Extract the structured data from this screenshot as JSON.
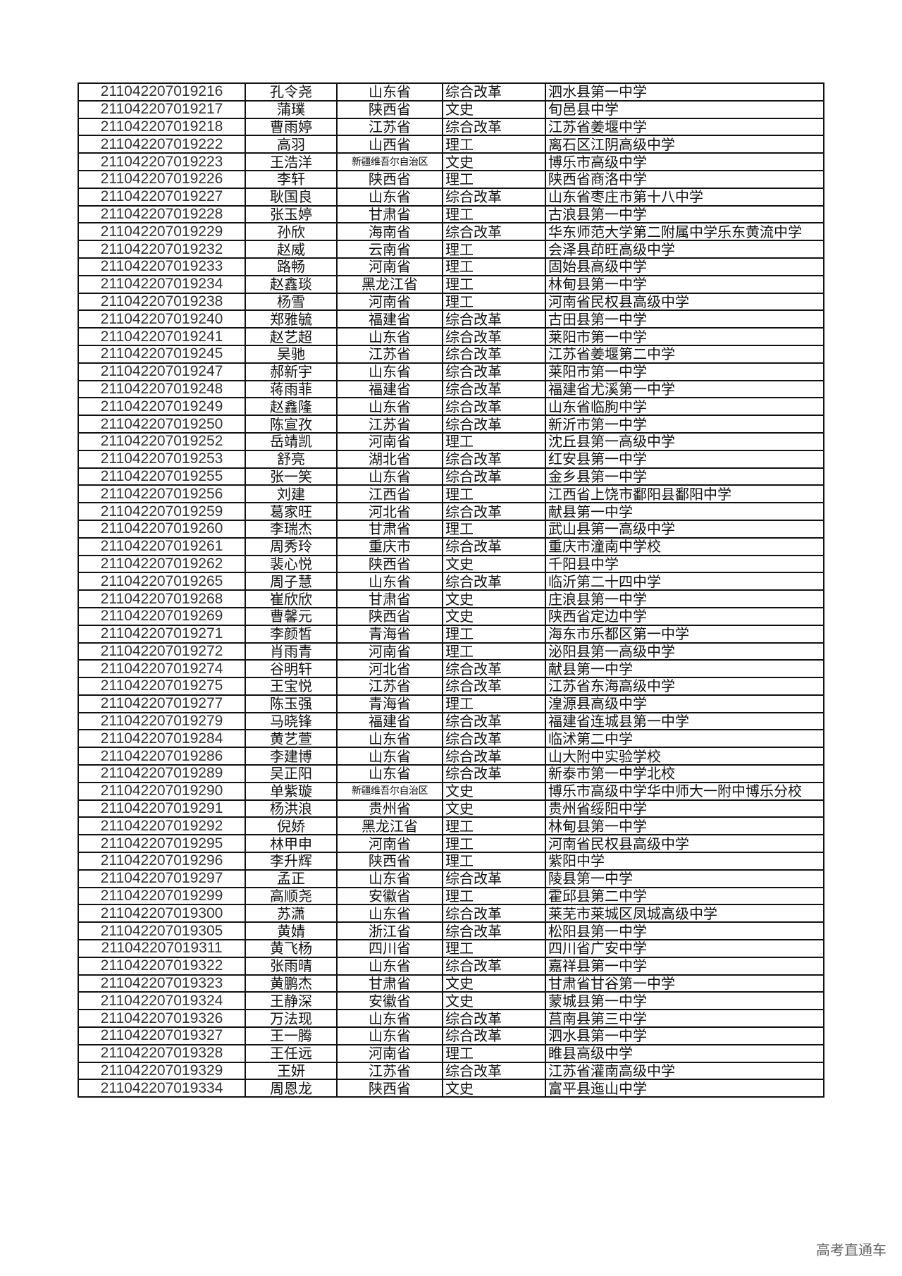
{
  "rows": [
    [
      "211042207019216",
      "孔令尧",
      "山东省",
      "综合改革",
      "泗水县第一中学"
    ],
    [
      "211042207019217",
      "蒲璞",
      "陕西省",
      "文史",
      "旬邑县中学"
    ],
    [
      "211042207019218",
      "曹雨婷",
      "江苏省",
      "综合改革",
      "江苏省姜堰中学"
    ],
    [
      "211042207019222",
      "高羽",
      "山西省",
      "理工",
      "离石区江阴高级中学"
    ],
    [
      "211042207019223",
      "王浩洋",
      "新疆维吾尔自治区",
      "文史",
      "博乐市高级中学"
    ],
    [
      "211042207019226",
      "李轩",
      "陕西省",
      "理工",
      "陕西省商洛中学"
    ],
    [
      "211042207019227",
      "耿国良",
      "山东省",
      "综合改革",
      "山东省枣庄市第十八中学"
    ],
    [
      "211042207019228",
      "张玉婷",
      "甘肃省",
      "理工",
      "古浪县第一中学"
    ],
    [
      "211042207019229",
      "孙欣",
      "海南省",
      "综合改革",
      "华东师范大学第二附属中学乐东黄流中学"
    ],
    [
      "211042207019232",
      "赵威",
      "云南省",
      "理工",
      "会泽县茚旺高级中学"
    ],
    [
      "211042207019233",
      "路畅",
      "河南省",
      "理工",
      "固始县高级中学"
    ],
    [
      "211042207019234",
      "赵鑫琰",
      "黑龙江省",
      "理工",
      "林甸县第一中学"
    ],
    [
      "211042207019238",
      "杨雪",
      "河南省",
      "理工",
      "河南省民权县高级中学"
    ],
    [
      "211042207019240",
      "郑雅毓",
      "福建省",
      "综合改革",
      "古田县第一中学"
    ],
    [
      "211042207019241",
      "赵艺超",
      "山东省",
      "综合改革",
      "莱阳市第一中学"
    ],
    [
      "211042207019245",
      "吴驰",
      "江苏省",
      "综合改革",
      "江苏省姜堰第二中学"
    ],
    [
      "211042207019247",
      "郝新宇",
      "山东省",
      "综合改革",
      "莱阳市第一中学"
    ],
    [
      "211042207019248",
      "蒋雨菲",
      "福建省",
      "综合改革",
      "福建省尤溪第一中学"
    ],
    [
      "211042207019249",
      "赵鑫隆",
      "山东省",
      "综合改革",
      "山东省临朐中学"
    ],
    [
      "211042207019250",
      "陈宣孜",
      "江苏省",
      "综合改革",
      "新沂市第一中学"
    ],
    [
      "211042207019252",
      "岳靖凯",
      "河南省",
      "理工",
      "沈丘县第一高级中学"
    ],
    [
      "211042207019253",
      "舒亮",
      "湖北省",
      "综合改革",
      "红安县第一中学"
    ],
    [
      "211042207019255",
      "张一笑",
      "山东省",
      "综合改革",
      "金乡县第一中学"
    ],
    [
      "211042207019256",
      "刘建",
      "江西省",
      "理工",
      "江西省上饶市鄱阳县鄱阳中学"
    ],
    [
      "211042207019259",
      "葛家旺",
      "河北省",
      "综合改革",
      "献县第一中学"
    ],
    [
      "211042207019260",
      "李瑞杰",
      "甘肃省",
      "理工",
      "武山县第一高级中学"
    ],
    [
      "211042207019261",
      "周秀玲",
      "重庆市",
      "综合改革",
      "重庆市潼南中学校"
    ],
    [
      "211042207019262",
      "裴心悦",
      "陕西省",
      "文史",
      "千阳县中学"
    ],
    [
      "211042207019265",
      "周子慧",
      "山东省",
      "综合改革",
      "临沂第二十四中学"
    ],
    [
      "211042207019268",
      "崔欣欣",
      "甘肃省",
      "文史",
      "庄浪县第一中学"
    ],
    [
      "211042207019269",
      "曹馨元",
      "陕西省",
      "文史",
      "陕西省定边中学"
    ],
    [
      "211042207019271",
      "李颜皙",
      "青海省",
      "理工",
      "海东市乐都区第一中学"
    ],
    [
      "211042207019272",
      "肖雨青",
      "河南省",
      "理工",
      "泌阳县第一高级中学"
    ],
    [
      "211042207019274",
      "谷明轩",
      "河北省",
      "综合改革",
      "献县第一中学"
    ],
    [
      "211042207019275",
      "王宝悦",
      "江苏省",
      "综合改革",
      "江苏省东海高级中学"
    ],
    [
      "211042207019277",
      "陈玉强",
      "青海省",
      "理工",
      "湟源县高级中学"
    ],
    [
      "211042207019279",
      "马晓锋",
      "福建省",
      "综合改革",
      "福建省连城县第一中学"
    ],
    [
      "211042207019284",
      "黄艺萱",
      "山东省",
      "综合改革",
      "临沭第二中学"
    ],
    [
      "211042207019286",
      "李建博",
      "山东省",
      "综合改革",
      "山大附中实验学校"
    ],
    [
      "211042207019289",
      "吴正阳",
      "山东省",
      "综合改革",
      "新泰市第一中学北校"
    ],
    [
      "211042207019290",
      "单紫璇",
      "新疆维吾尔自治区",
      "文史",
      "博乐市高级中学华中师大一附中博乐分校"
    ],
    [
      "211042207019291",
      "杨洪浪",
      "贵州省",
      "文史",
      "贵州省绥阳中学"
    ],
    [
      "211042207019292",
      "倪娇",
      "黑龙江省",
      "理工",
      "林甸县第一中学"
    ],
    [
      "211042207019295",
      "林甲申",
      "河南省",
      "理工",
      "河南省民权县高级中学"
    ],
    [
      "211042207019296",
      "李升辉",
      "陕西省",
      "理工",
      "紫阳中学"
    ],
    [
      "211042207019297",
      "孟正",
      "山东省",
      "综合改革",
      "陵县第一中学"
    ],
    [
      "211042207019299",
      "高顺尧",
      "安徽省",
      "理工",
      "霍邱县第二中学"
    ],
    [
      "211042207019300",
      "苏潇",
      "山东省",
      "综合改革",
      "莱芜市莱城区凤城高级中学"
    ],
    [
      "211042207019305",
      "黄婧",
      "浙江省",
      "综合改革",
      "松阳县第一中学"
    ],
    [
      "211042207019311",
      "黄飞杨",
      "四川省",
      "理工",
      "四川省广安中学"
    ],
    [
      "211042207019322",
      "张雨晴",
      "山东省",
      "综合改革",
      "嘉祥县第一中学"
    ],
    [
      "211042207019323",
      "黄鹏杰",
      "甘肃省",
      "文史",
      "甘肃省甘谷第一中学"
    ],
    [
      "211042207019324",
      "王静深",
      "安徽省",
      "文史",
      "蒙城县第一中学"
    ],
    [
      "211042207019326",
      "万法现",
      "山东省",
      "综合改革",
      "莒南县第三中学"
    ],
    [
      "211042207019327",
      "王一腾",
      "山东省",
      "综合改革",
      "泗水县第一中学"
    ],
    [
      "211042207019328",
      "王任远",
      "河南省",
      "理工",
      "睢县高级中学"
    ],
    [
      "211042207019329",
      "王妍",
      "江苏省",
      "综合改革",
      "江苏省灌南高级中学"
    ],
    [
      "211042207019334",
      "周恩龙",
      "陕西省",
      "文史",
      "富平县迤山中学"
    ]
  ],
  "watermark": "高考直通车"
}
